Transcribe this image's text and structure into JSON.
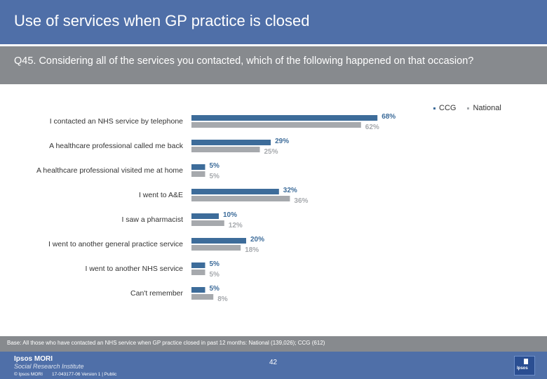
{
  "header": {
    "title": "Use of services when GP practice is closed"
  },
  "question": {
    "text": "Q45. Considering all of the services you contacted, which of the following happened on that occasion?"
  },
  "legend": {
    "items": [
      {
        "label": "CCG",
        "color": "#3d6c9a"
      },
      {
        "label": "National",
        "color": "#a6a9ad"
      }
    ]
  },
  "chart_data": {
    "type": "bar",
    "orientation": "horizontal",
    "categories": [
      "I contacted an NHS service by telephone",
      "A healthcare professional called me back",
      "A healthcare professional visited me at home",
      "I went to A&E",
      "I saw a pharmacist",
      "I went to another general practice service",
      "I went to another NHS service",
      "Can't remember"
    ],
    "series": [
      {
        "name": "CCG",
        "color": "#3d6c9a",
        "values": [
          68,
          29,
          5,
          32,
          10,
          20,
          5,
          5
        ],
        "labels": [
          "68%",
          "29%",
          "5%",
          "32%",
          "10%",
          "20%",
          "5%",
          "5%"
        ]
      },
      {
        "name": "National",
        "color": "#a6a9ad",
        "values": [
          62,
          25,
          5,
          36,
          12,
          18,
          5,
          8
        ],
        "labels": [
          "62%",
          "25%",
          "5%",
          "36%",
          "12%",
          "18%",
          "5%",
          "8%"
        ]
      }
    ],
    "xlim": [
      0,
      100
    ],
    "unit": "%",
    "grid": false,
    "legend_position": "top-right"
  },
  "footer": {
    "base_note": "Base: All those who have contacted an NHS service when GP practice closed in past 12 months: National (139,026); CCG (612)",
    "page_number": "42",
    "logo_top": "Ipsos MORI",
    "logo_sub": "Social Research Institute",
    "copyright": "© Ipsos MORI",
    "job_number": "17-043177-06 Version 1 | Public",
    "ipsos_logo_text": "Ipsos"
  }
}
